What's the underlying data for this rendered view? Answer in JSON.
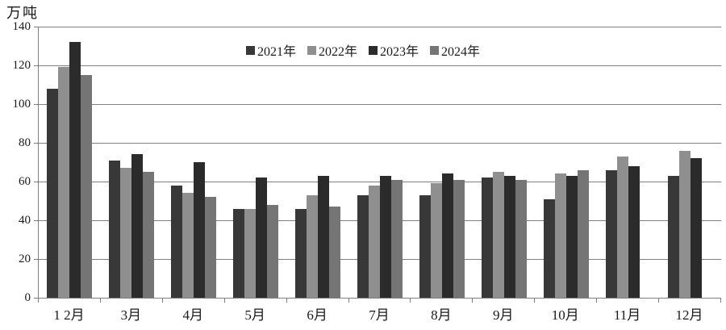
{
  "chart_data": {
    "type": "bar",
    "title": "",
    "ylabel": "万吨",
    "xlabel": "",
    "ylim": [
      0,
      140
    ],
    "ytick_interval": 20,
    "yticks": [
      140,
      120,
      100,
      80,
      60,
      40,
      20,
      0
    ],
    "grid": "horizontal",
    "legend_position": "top-center",
    "categories": [
      "1 2月",
      "3月",
      "4月",
      "5月",
      "6月",
      "7月",
      "8月",
      "9月",
      "10月",
      "11月",
      "12月"
    ],
    "series": [
      {
        "name": "2021年",
        "color": "#383838",
        "values": [
          108,
          71,
          58,
          46,
          46,
          53,
          53,
          62,
          51,
          66,
          63
        ]
      },
      {
        "name": "2022年",
        "color": "#8f8f8f",
        "values": [
          119,
          67,
          54,
          46,
          53,
          58,
          59,
          65,
          64,
          73,
          76
        ]
      },
      {
        "name": "2023年",
        "color": "#2b2b2b",
        "values": [
          132,
          74,
          70,
          62,
          63,
          63,
          64,
          63,
          63,
          68,
          72
        ]
      },
      {
        "name": "2024年",
        "color": "#757575",
        "values": [
          115,
          65,
          52,
          48,
          47,
          61,
          61,
          61,
          66,
          null,
          null
        ]
      }
    ]
  }
}
